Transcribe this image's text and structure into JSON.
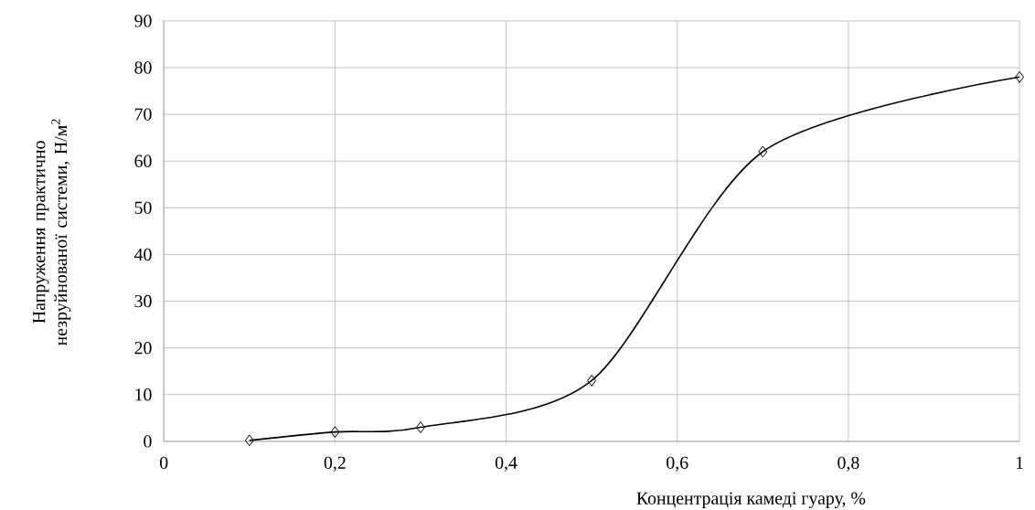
{
  "chart_data": {
    "type": "line",
    "xlabel": "Концентрація камеді гуару, %",
    "ylabel": "Напруження практично незруйнованої системи, Н/м$^{2}$",
    "x": [
      0.1,
      0.2,
      0.3,
      0.5,
      0.7,
      1
    ],
    "series": [
      {
        "color": "#000000",
        "values": [
          0.2,
          2,
          3,
          13,
          62,
          78
        ]
      }
    ],
    "xlim": [
      0,
      1
    ],
    "ylim": [
      0,
      90
    ],
    "xticks": [
      0,
      {
        "value": 0.2,
        "label": "0,2"
      },
      {
        "value": 0.4,
        "label": "0,4"
      },
      {
        "value": 0.6,
        "label": "0,6"
      },
      {
        "value": 0.8,
        "label": "0,8"
      },
      1
    ],
    "yticks": [
      0,
      10,
      20,
      30,
      40,
      50,
      60,
      70,
      80,
      90
    ],
    "grid": true,
    "marker": "diamond",
    "line_style": "solid"
  }
}
